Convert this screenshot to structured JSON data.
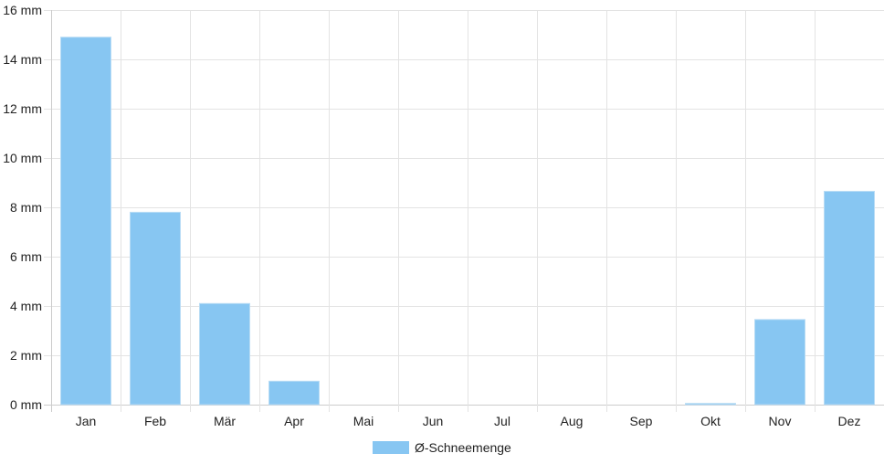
{
  "chart_data": {
    "type": "bar",
    "categories": [
      "Jan",
      "Feb",
      "Mär",
      "Apr",
      "Mai",
      "Jun",
      "Jul",
      "Aug",
      "Sep",
      "Okt",
      "Nov",
      "Dez"
    ],
    "series": [
      {
        "name": "Ø-Schneemenge",
        "values": [
          14.9,
          7.8,
          4.1,
          0.95,
          0,
          0,
          0,
          0,
          0,
          0.05,
          3.45,
          8.65
        ],
        "color": "#87c6f2"
      }
    ],
    "y_ticks": [
      "0 mm",
      "2 mm",
      "4 mm",
      "6 mm",
      "8 mm",
      "10 mm",
      "12 mm",
      "14 mm",
      "16 mm"
    ],
    "ylim": [
      0,
      16
    ],
    "grid": true,
    "legend_position": "bottom-center",
    "colors": {
      "grid": "#e3e3e3",
      "axis": "#cccccc",
      "bar": "#87c6f2",
      "bar_border": "#b8dcf5"
    }
  }
}
